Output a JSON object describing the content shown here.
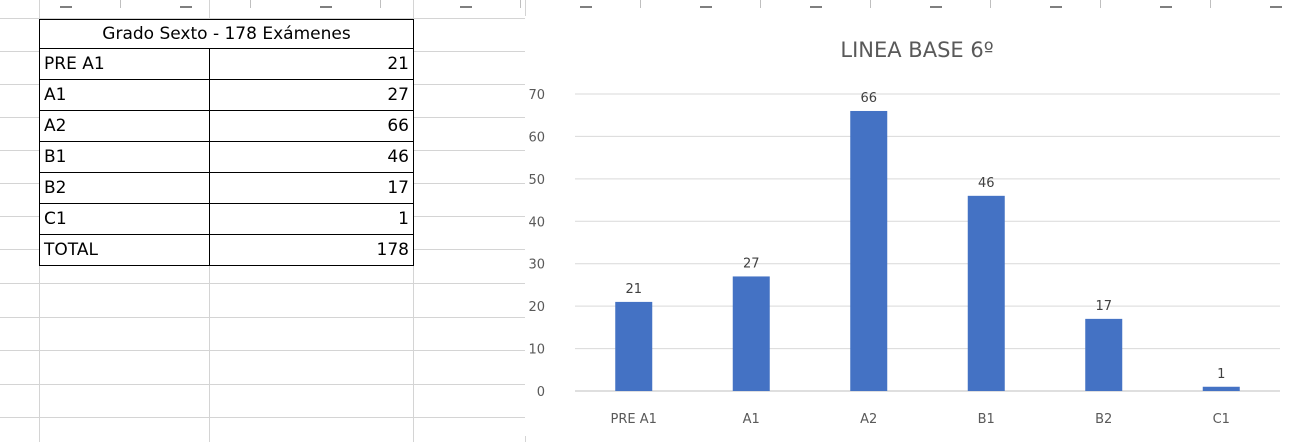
{
  "table": {
    "header": "Grado Sexto - 178 Exámenes",
    "rows": [
      {
        "label": "PRE A1",
        "value": "21"
      },
      {
        "label": "A1",
        "value": "27"
      },
      {
        "label": "A2",
        "value": "66"
      },
      {
        "label": "B1",
        "value": "46"
      },
      {
        "label": "B2",
        "value": "17"
      },
      {
        "label": "C1",
        "value": "1"
      },
      {
        "label": "TOTAL",
        "value": "178"
      }
    ]
  },
  "chart_data": {
    "type": "bar",
    "title": "LINEA BASE 6º",
    "categories": [
      "PRE A1",
      "A1",
      "A2",
      "B1",
      "B2",
      "C1"
    ],
    "values": [
      21,
      27,
      66,
      46,
      17,
      1
    ],
    "ylim": [
      0,
      70
    ],
    "yticks": [
      0,
      10,
      20,
      30,
      40,
      50,
      60,
      70
    ],
    "grid": true,
    "legend": "none",
    "data_labels": true,
    "bar_color": "#4472C4"
  },
  "colors": {
    "bar": "#4472C4",
    "gridline": "#d9d9d9",
    "axis_text": "#595959"
  }
}
